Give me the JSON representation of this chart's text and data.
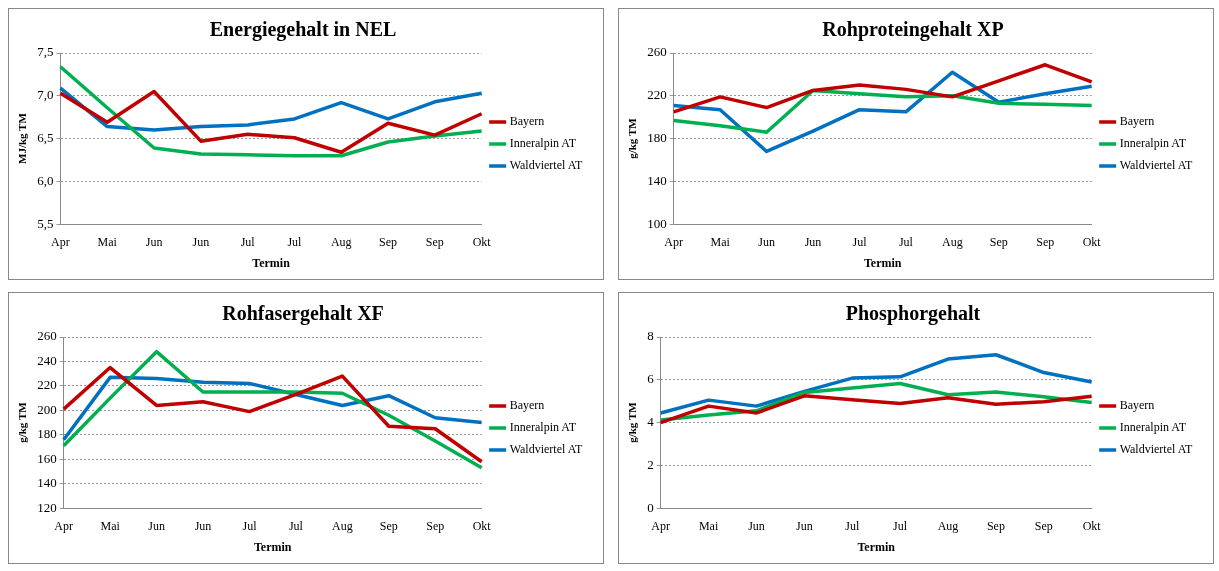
{
  "chart_data": [
    {
      "type": "line",
      "title": "Energiegehalt in NEL",
      "xlabel": "Termin",
      "ylabel": "MJ/kg TM",
      "categories": [
        "Apr",
        "Mai",
        "Jun",
        "Jun",
        "Jul",
        "Jul",
        "Aug",
        "Sep",
        "Sep",
        "Okt"
      ],
      "ylim": [
        5.5,
        7.5
      ],
      "yticks": [
        {
          "value": 5.5,
          "label": "5,5"
        },
        {
          "value": 6,
          "label": "6,0"
        },
        {
          "value": 6.5,
          "label": "6,5"
        },
        {
          "value": 7,
          "label": "7,0"
        },
        {
          "value": 7.5,
          "label": "7,5"
        }
      ],
      "grid": "y",
      "legend": "right",
      "marker": "none",
      "series": [
        {
          "name": "Bayern",
          "color": "#c00000",
          "values": [
            7.03,
            6.69,
            7.05,
            6.47,
            6.55,
            6.51,
            6.34,
            6.68,
            6.54,
            6.79
          ]
        },
        {
          "name": "Inneralpin AT",
          "color": "#00b050",
          "values": [
            7.34,
            6.86,
            6.39,
            6.32,
            6.31,
            6.3,
            6.3,
            6.46,
            6.53,
            6.59
          ]
        },
        {
          "name": "Waldviertel AT",
          "color": "#0070c0",
          "values": [
            7.09,
            6.64,
            6.6,
            6.64,
            6.66,
            6.73,
            6.92,
            6.73,
            6.93,
            7.03
          ]
        }
      ]
    },
    {
      "type": "line",
      "title": "Rohproteingehalt XP",
      "xlabel": "Termin",
      "ylabel": "g/kg TM",
      "categories": [
        "Apr",
        "Mai",
        "Jun",
        "Jun",
        "Jul",
        "Jul",
        "Aug",
        "Sep",
        "Sep",
        "Okt"
      ],
      "ylim": [
        100,
        260
      ],
      "yticks": [
        100,
        140,
        180,
        220,
        260
      ],
      "grid": "y",
      "legend": "right",
      "marker": "none",
      "series": [
        {
          "name": "Bayern",
          "color": "#c00000",
          "values": [
            205,
            219,
            209,
            225,
            230,
            226,
            219,
            234,
            249,
            233
          ]
        },
        {
          "name": "Inneralpin AT",
          "color": "#00b050",
          "values": [
            197,
            192,
            186,
            225,
            222,
            219,
            220,
            213,
            212,
            211
          ]
        },
        {
          "name": "Waldviertel AT",
          "color": "#0070c0",
          "values": [
            211,
            207,
            168,
            187,
            207,
            205,
            242,
            214,
            222,
            229
          ]
        }
      ]
    },
    {
      "type": "line",
      "title": "Rohfasergehalt XF",
      "xlabel": "Termin",
      "ylabel": "g/kg TM",
      "categories": [
        "Apr",
        "Mai",
        "Jun",
        "Jun",
        "Jul",
        "Jul",
        "Aug",
        "Sep",
        "Sep",
        "Okt"
      ],
      "ylim": [
        120,
        260
      ],
      "yticks": [
        120,
        140,
        160,
        180,
        200,
        220,
        240,
        260
      ],
      "grid": "y",
      "legend": "right",
      "marker": "none",
      "series": [
        {
          "name": "Bayern",
          "color": "#c00000",
          "values": [
            201,
            235,
            204,
            207,
            199,
            213,
            228,
            187,
            185,
            158
          ]
        },
        {
          "name": "Inneralpin AT",
          "color": "#00b050",
          "values": [
            171,
            210,
            248,
            215,
            215,
            215,
            214,
            196,
            175,
            153
          ]
        },
        {
          "name": "Waldviertel AT",
          "color": "#0070c0",
          "values": [
            176,
            227,
            226,
            223,
            222,
            213,
            204,
            212,
            194,
            190
          ]
        }
      ]
    },
    {
      "type": "line",
      "title": "Phosphorgehalt",
      "xlabel": "Termin",
      "ylabel": "g/kg TM",
      "categories": [
        "Apr",
        "Mai",
        "Jun",
        "Jun",
        "Jul",
        "Jul",
        "Aug",
        "Sep",
        "Sep",
        "Okt"
      ],
      "ylim": [
        0,
        8
      ],
      "yticks": [
        0,
        2,
        4,
        6,
        8
      ],
      "grid": "y",
      "legend": "right",
      "marker": "none",
      "series": [
        {
          "name": "Bayern",
          "color": "#c00000",
          "values": [
            4.0,
            4.77,
            4.45,
            5.25,
            5.07,
            4.89,
            5.16,
            4.86,
            4.97,
            5.23
          ]
        },
        {
          "name": "Inneralpin AT",
          "color": "#00b050",
          "values": [
            4.12,
            4.35,
            4.55,
            5.41,
            5.62,
            5.83,
            5.3,
            5.43,
            5.21,
            4.94
          ]
        },
        {
          "name": "Waldviertel AT",
          "color": "#0070c0",
          "values": [
            4.45,
            5.05,
            4.77,
            5.46,
            6.08,
            6.14,
            6.97,
            7.17,
            6.34,
            5.9
          ]
        }
      ]
    }
  ]
}
